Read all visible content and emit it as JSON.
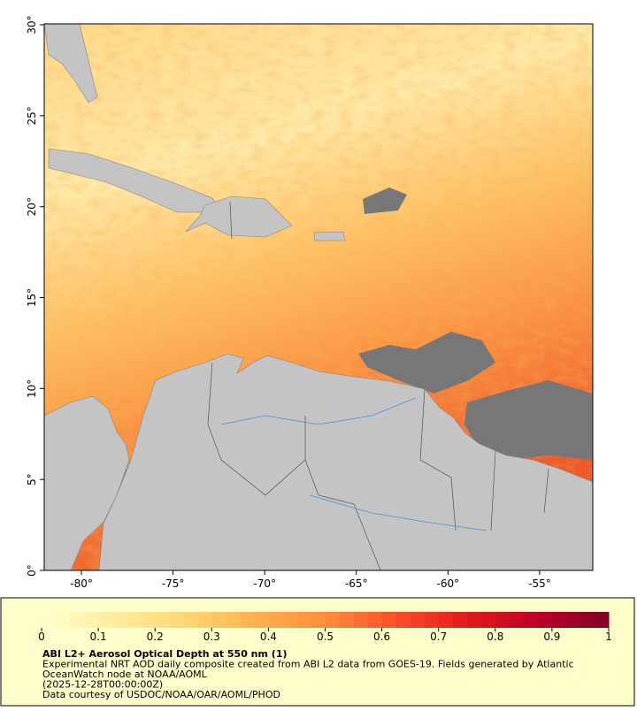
{
  "chart_data": {
    "type": "map",
    "xlim": [
      -82.03,
      -52.1
    ],
    "ylim": [
      0,
      30.05
    ],
    "xticks": [
      {
        "value": -80,
        "label": "-80°"
      },
      {
        "value": -75,
        "label": "-75°"
      },
      {
        "value": -70,
        "label": "-70°"
      },
      {
        "value": -65,
        "label": "-65°"
      },
      {
        "value": -60,
        "label": "-60°"
      },
      {
        "value": -55,
        "label": "-55°"
      }
    ],
    "yticks": [
      {
        "value": 0,
        "label": "0°"
      },
      {
        "value": 5,
        "label": "5°"
      },
      {
        "value": 10,
        "label": "10°"
      },
      {
        "value": 15,
        "label": "15°"
      },
      {
        "value": 20,
        "label": "20°"
      },
      {
        "value": 25,
        "label": "25°"
      },
      {
        "value": 30,
        "label": "30°"
      }
    ],
    "colorbar": {
      "lim": [
        0,
        1
      ],
      "ticks": [
        0,
        0.1,
        0.2,
        0.3,
        0.4,
        0.5,
        0.6,
        0.7,
        0.8,
        0.9,
        1
      ],
      "colors": [
        "#ffffcc",
        "#ffeda0",
        "#fed976",
        "#feb24c",
        "#fd8d3c",
        "#fc4e2a",
        "#e31a1c",
        "#bd0026",
        "#800026"
      ]
    },
    "caption": [
      "ABI L2+ Aerosol Optical Depth at 550 nm (1)",
      "Experimental NRT AOD daily composite created from ABI L2 data from GOES-19. Fields generated by Atlantic",
      "OceanWatch node at NOAA/AOML",
      "(2025-12-28T00:00:00Z)",
      "Data courtesy of USDOC/NOAA/OAR/AOML/PHOD"
    ]
  }
}
